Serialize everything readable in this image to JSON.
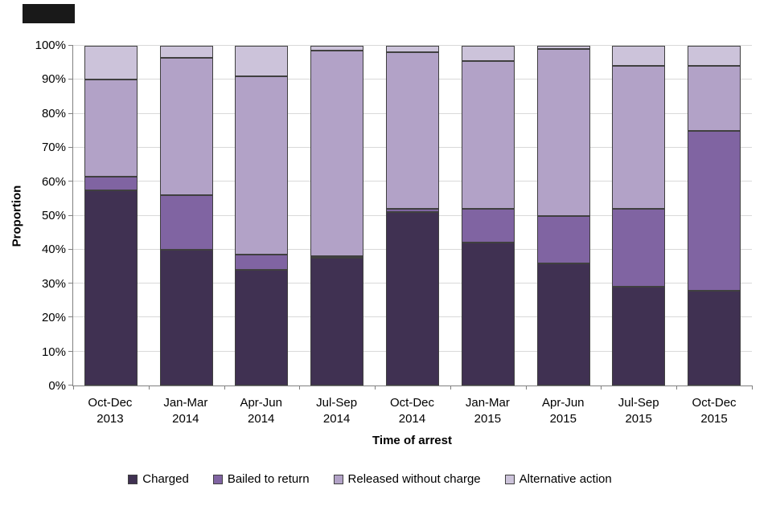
{
  "chart_data": {
    "type": "bar",
    "stacked": true,
    "orientation": "vertical",
    "title": "",
    "xlabel": "Time of arrest",
    "ylabel": "Proportion",
    "ylim": [
      0,
      100
    ],
    "yticks": [
      "0%",
      "10%",
      "20%",
      "30%",
      "40%",
      "50%",
      "60%",
      "70%",
      "80%",
      "90%",
      "100%"
    ],
    "grid": "horizontal",
    "legend_position": "bottom",
    "categories": [
      {
        "quarter": "Oct-Dec",
        "year": "2013"
      },
      {
        "quarter": "Jan-Mar",
        "year": "2014"
      },
      {
        "quarter": "Apr-Jun",
        "year": "2014"
      },
      {
        "quarter": "Jul-Sep",
        "year": "2014"
      },
      {
        "quarter": "Oct-Dec",
        "year": "2014"
      },
      {
        "quarter": "Jan-Mar",
        "year": "2015"
      },
      {
        "quarter": "Apr-Jun",
        "year": "2015"
      },
      {
        "quarter": "Jul-Sep",
        "year": "2015"
      },
      {
        "quarter": "Oct-Dec",
        "year": "2015"
      }
    ],
    "series": [
      {
        "name": "Charged",
        "color": "#403152",
        "values": [
          57.5,
          40,
          34,
          37.5,
          51,
          42,
          36,
          29,
          28
        ]
      },
      {
        "name": "Bailed to return",
        "color": "#8064A2",
        "values": [
          4,
          16,
          4.5,
          0.5,
          1,
          10,
          14,
          23,
          47
        ]
      },
      {
        "name": "Released without charge",
        "color": "#B2A2C7",
        "values": [
          28.5,
          40.5,
          52.5,
          60.5,
          46,
          43.5,
          49,
          42,
          19
        ]
      },
      {
        "name": "Alternative action",
        "color": "#CCC3DA",
        "values": [
          10,
          3.5,
          9,
          1.5,
          2,
          4.5,
          1,
          6,
          6
        ]
      }
    ],
    "colors": {
      "gridline": "#D9D9D9",
      "axis": "#808080",
      "segment_border": "#404040",
      "text": "#000000",
      "background": "#FFFFFF"
    }
  }
}
